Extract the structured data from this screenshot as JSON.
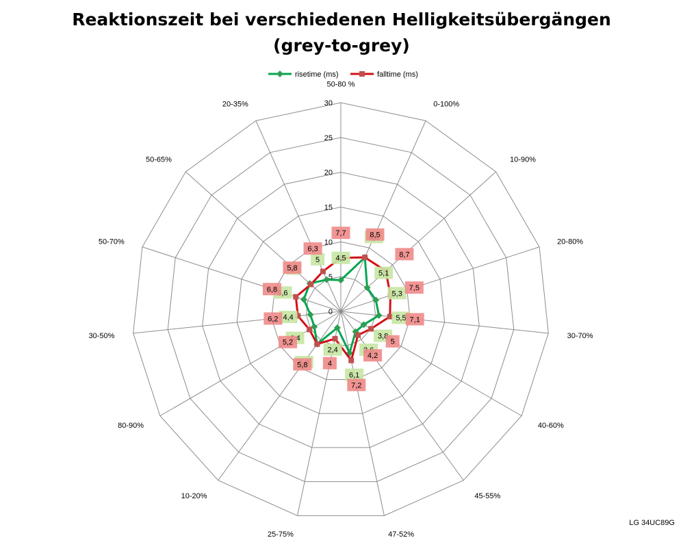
{
  "chart_data": {
    "type": "radar",
    "title_line1": "Reaktionszeit bei verschiedenen Helligkeitsübergängen",
    "title_line2": "(grey-to-grey)",
    "categories": [
      "50-80 %",
      "0-100%",
      "10-90%",
      "20-80%",
      "30-70%",
      "40-60%",
      "45-55%",
      "47-52%",
      "25-75%",
      "10-20%",
      "80-90%",
      "30-50%",
      "50-70%",
      "50-65%",
      "20-35%"
    ],
    "radial_ticks": [
      0,
      5,
      10,
      15,
      20,
      25,
      30
    ],
    "rlim": [
      0,
      30
    ],
    "legend_position": "top",
    "series": [
      {
        "name": "risetime (ms)",
        "color": "#00a650",
        "label_color": "#c6e6a3",
        "values": [
          4.5,
          8.5,
          5.1,
          5.3,
          5.5,
          3.8,
          3.6,
          6.1,
          2.4,
          5.8,
          4.4,
          4.4,
          5.6,
          6.0,
          5.0
        ],
        "labels": [
          "4,5",
          "8,5",
          "5,1",
          "5,3",
          "5,5",
          "3,8",
          "3,6",
          "6,1",
          "2,4",
          "5,8",
          "4,4",
          "4,4",
          "5,6",
          "6",
          "5"
        ]
      },
      {
        "name": "falltime (ms)",
        "color": "#d40f16",
        "label_color": "#f08a8a",
        "values": [
          7.7,
          8.5,
          8.7,
          7.5,
          7.1,
          5.0,
          4.2,
          7.2,
          4.0,
          5.8,
          5.2,
          6.2,
          6.8,
          5.8,
          6.3
        ],
        "labels": [
          "7,7",
          "8,5",
          "8,7",
          "7,5",
          "7,1",
          "5",
          "4,2",
          "7,2",
          "4",
          "5,8",
          "5,2",
          "6,2",
          "6,8",
          "5,8",
          "6,3"
        ]
      }
    ]
  },
  "watermark": "LG 34UC89G"
}
